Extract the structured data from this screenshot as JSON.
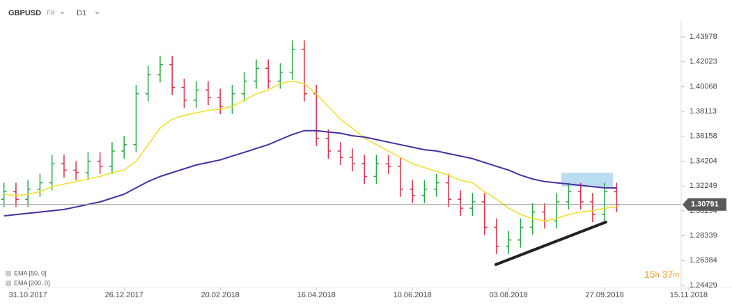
{
  "header": {
    "symbol": "GBPUSD",
    "market": "FX",
    "timeframe": "D1"
  },
  "countdown": [
    "15",
    "h",
    "37",
    "m"
  ],
  "chart_data": {
    "type": "ohlc",
    "categories": [
      null,
      null,
      "31.10.2017",
      null,
      null,
      null,
      null,
      null,
      null,
      null,
      "26.12.2017",
      null,
      null,
      null,
      null,
      null,
      null,
      null,
      "20.02.2018",
      null,
      null,
      null,
      null,
      null,
      null,
      null,
      "16.04.2018",
      null,
      null,
      null,
      null,
      null,
      null,
      null,
      "10.06.2018",
      null,
      null,
      null,
      null,
      null,
      null,
      null,
      "03.08.2018",
      null,
      null,
      null,
      null,
      null,
      null,
      null,
      "27.09.2018",
      null,
      null,
      null,
      null,
      null,
      null,
      "15.11.2018"
    ],
    "open": [
      1.312,
      1.318,
      1.312,
      1.32,
      1.325,
      1.34,
      1.335,
      1.333,
      1.342,
      1.338,
      1.35,
      1.355,
      1.395,
      1.41,
      1.418,
      1.4,
      1.39,
      1.398,
      1.392,
      1.385,
      1.395,
      1.405,
      1.415,
      1.405,
      1.412,
      1.43,
      1.395,
      1.36,
      1.35,
      1.345,
      1.34,
      1.33,
      1.34,
      1.338,
      1.32,
      1.315,
      1.32,
      1.325,
      1.312,
      1.305,
      1.31,
      1.29,
      1.275,
      1.28,
      1.29,
      1.302,
      1.295,
      1.31,
      1.318,
      1.31,
      1.3,
      1.318,
      null,
      null,
      null,
      null,
      null,
      null
    ],
    "high": [
      1.325,
      1.325,
      1.327,
      1.332,
      1.347,
      1.347,
      1.342,
      1.349,
      1.349,
      1.357,
      1.362,
      1.402,
      1.417,
      1.425,
      1.425,
      1.407,
      1.405,
      1.405,
      1.399,
      1.402,
      1.412,
      1.422,
      1.422,
      1.419,
      1.437,
      1.437,
      1.402,
      1.367,
      1.357,
      1.352,
      1.347,
      1.347,
      1.347,
      1.345,
      1.327,
      1.327,
      1.332,
      1.332,
      1.319,
      1.317,
      1.317,
      1.297,
      1.287,
      1.297,
      1.309,
      1.309,
      1.317,
      1.325,
      1.325,
      1.317,
      1.325,
      1.325,
      null,
      null,
      null,
      null,
      null,
      null
    ],
    "low": [
      1.306,
      1.306,
      1.306,
      1.314,
      1.319,
      1.329,
      1.327,
      1.327,
      1.332,
      1.332,
      1.344,
      1.349,
      1.389,
      1.404,
      1.394,
      1.384,
      1.384,
      1.386,
      1.379,
      1.379,
      1.389,
      1.399,
      1.399,
      1.399,
      1.406,
      1.389,
      1.354,
      1.344,
      1.339,
      1.334,
      1.324,
      1.324,
      1.332,
      1.314,
      1.309,
      1.309,
      1.314,
      1.306,
      1.299,
      1.299,
      1.284,
      1.269,
      1.269,
      1.274,
      1.284,
      1.289,
      1.289,
      1.304,
      1.304,
      1.294,
      1.294,
      1.3019,
      null,
      null,
      null,
      null,
      null,
      null
    ],
    "close": [
      1.318,
      1.312,
      1.32,
      1.325,
      1.34,
      1.335,
      1.333,
      1.342,
      1.338,
      1.35,
      1.355,
      1.395,
      1.41,
      1.418,
      1.4,
      1.39,
      1.398,
      1.392,
      1.385,
      1.395,
      1.405,
      1.415,
      1.405,
      1.412,
      1.43,
      1.395,
      1.36,
      1.35,
      1.345,
      1.34,
      1.33,
      1.34,
      1.338,
      1.32,
      1.315,
      1.32,
      1.325,
      1.312,
      1.305,
      1.31,
      1.29,
      1.275,
      1.28,
      1.29,
      1.302,
      1.295,
      1.31,
      1.318,
      1.31,
      1.3,
      1.318,
      1.30791,
      null,
      null,
      null,
      null,
      null,
      null
    ],
    "up_color": "#27a844",
    "down_color": "#d8314a",
    "series": [
      {
        "name": "EMA [50, 0]",
        "color": "#f2df2c",
        "values": [
          1.316,
          1.315,
          1.316,
          1.318,
          1.322,
          1.324,
          1.326,
          1.328,
          1.33,
          1.333,
          1.335,
          1.342,
          1.355,
          1.368,
          1.375,
          1.378,
          1.38,
          1.382,
          1.383,
          1.385,
          1.39,
          1.395,
          1.398,
          1.403,
          1.405,
          1.403,
          1.395,
          1.385,
          1.375,
          1.368,
          1.36,
          1.355,
          1.35,
          1.345,
          1.34,
          1.337,
          1.334,
          1.331,
          1.327,
          1.325,
          1.318,
          1.312,
          1.305,
          1.3,
          1.297,
          1.295,
          1.297,
          1.3,
          1.302,
          1.303,
          1.305,
          1.306,
          null,
          null,
          null,
          null,
          null,
          null
        ]
      },
      {
        "name": "EMA [200, 0]",
        "color": "#4a2f9e",
        "values": [
          1.299,
          1.3,
          1.301,
          1.302,
          1.303,
          1.304,
          1.306,
          1.308,
          1.31,
          1.313,
          1.316,
          1.321,
          1.326,
          1.33,
          1.333,
          1.336,
          1.339,
          1.341,
          1.343,
          1.346,
          1.349,
          1.352,
          1.355,
          1.359,
          1.363,
          1.366,
          1.366,
          1.365,
          1.364,
          1.362,
          1.361,
          1.359,
          1.357,
          1.355,
          1.353,
          1.351,
          1.35,
          1.348,
          1.346,
          1.344,
          1.341,
          1.338,
          1.335,
          1.331,
          1.328,
          1.326,
          1.325,
          1.324,
          1.323,
          1.322,
          1.321,
          1.321,
          null,
          null,
          null,
          null,
          null,
          null
        ]
      }
    ],
    "ylim": [
      1.2388,
      1.4469
    ],
    "yticks": [
      1.43978,
      1.42023,
      1.40068,
      1.38113,
      1.36158,
      1.34204,
      1.32249,
      1.30294,
      1.28339,
      1.26384,
      1.24429
    ],
    "current_price": 1.30791
  }
}
